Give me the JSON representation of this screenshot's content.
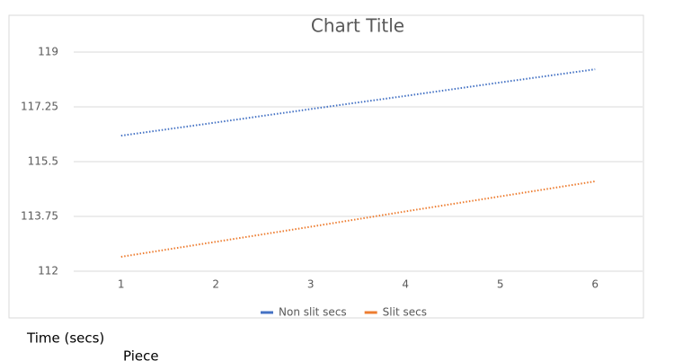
{
  "chart_data": {
    "type": "line",
    "title": "Chart Title",
    "x_label": "Piece",
    "y_label": "Time (secs)",
    "categories": [
      "1",
      "2",
      "3",
      "4",
      "5",
      "6"
    ],
    "series": [
      {
        "name": "Non slit secs",
        "color": "#4472c4",
        "values": [
          116.33,
          116.75,
          117.18,
          117.6,
          118.03,
          118.45
        ]
      },
      {
        "name": "Slit secs",
        "color": "#ed7d31",
        "values": [
          112.46,
          112.94,
          113.42,
          113.91,
          114.39,
          114.87
        ]
      }
    ],
    "ylim": [
      112,
      119
    ],
    "yticks": [
      112,
      113.75,
      115.5,
      117.25,
      119
    ],
    "grid": true,
    "legend": "bottom"
  }
}
